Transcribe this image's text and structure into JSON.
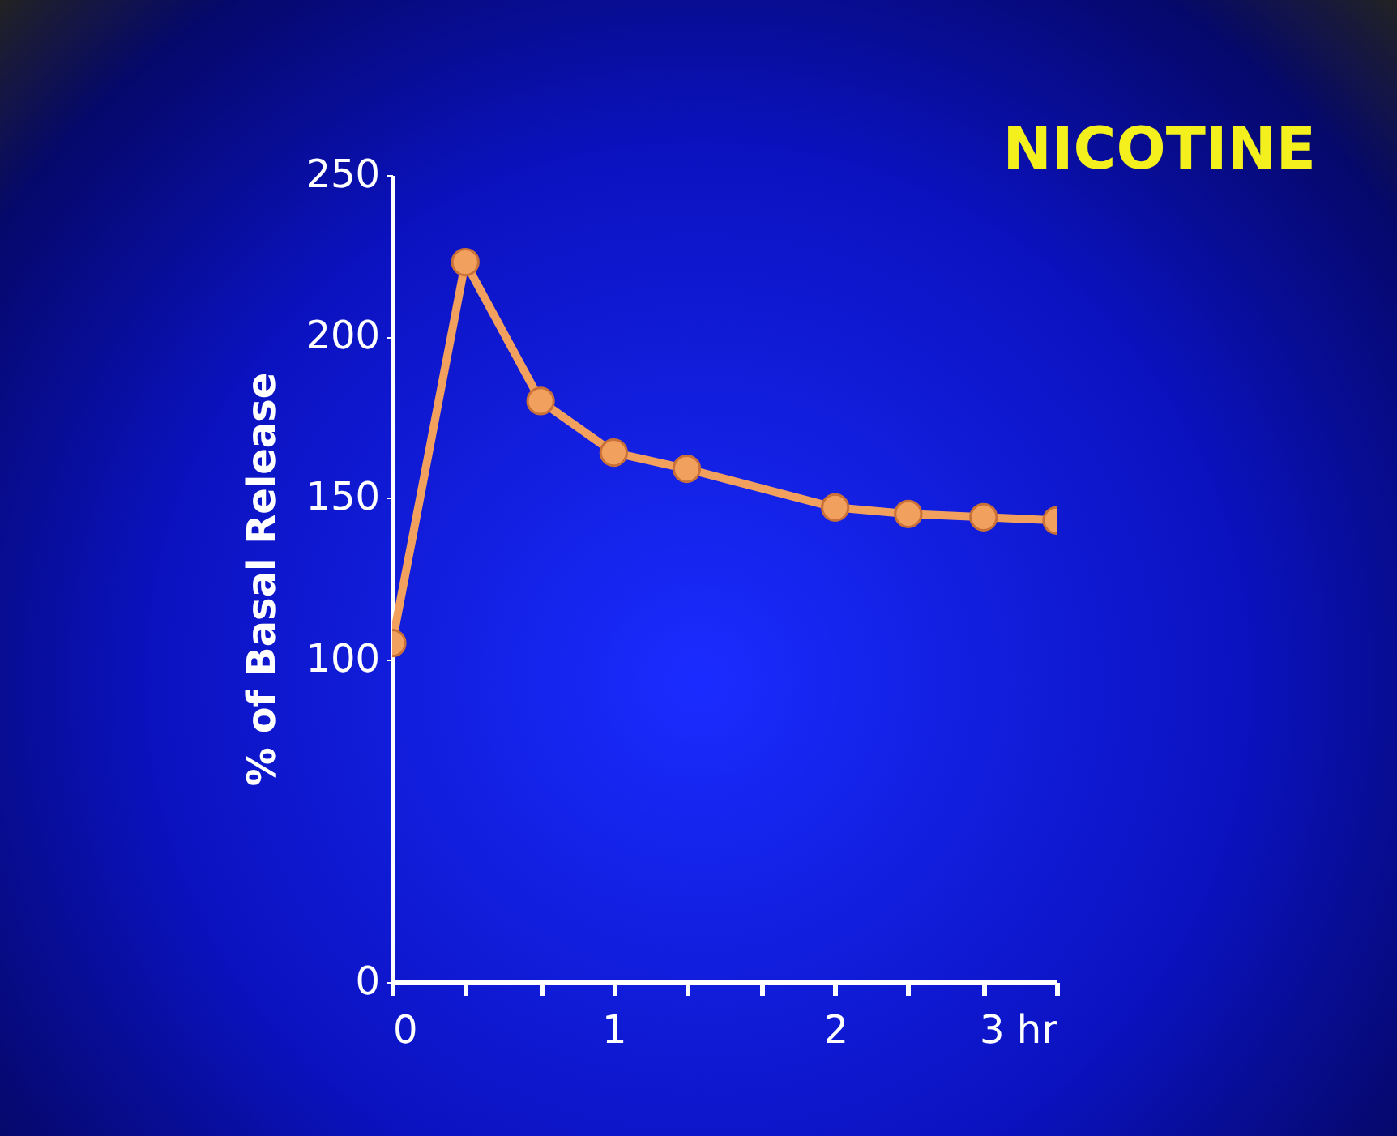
{
  "chart_data": {
    "type": "line",
    "title": "NICOTINE",
    "ylabel": "% of Basal Release",
    "x": [
      0,
      0.33,
      0.67,
      1,
      1.33,
      2,
      2.33,
      2.67,
      3
    ],
    "series": [
      {
        "color": "#f2a05e",
        "values": [
          105,
          223,
          180,
          164,
          159,
          147,
          145,
          144,
          143
        ]
      }
    ],
    "xlim": [
      0,
      3
    ],
    "xticks": [
      0,
      {
        "value": 0.33,
        "label": null
      },
      {
        "value": 0.67,
        "label": null
      },
      1,
      {
        "value": 1.33,
        "label": null
      },
      {
        "value": 1.67,
        "label": null
      },
      2,
      {
        "value": 2.33,
        "label": null
      },
      {
        "value": 2.67,
        "label": null
      },
      {
        "value": 3,
        "label": "3 hr"
      }
    ],
    "ylim": [
      0,
      250
    ],
    "yticks": [
      0,
      100,
      150,
      200,
      250
    ],
    "grid": false,
    "legend": false,
    "marker": "circle",
    "line_style": "solid"
  }
}
